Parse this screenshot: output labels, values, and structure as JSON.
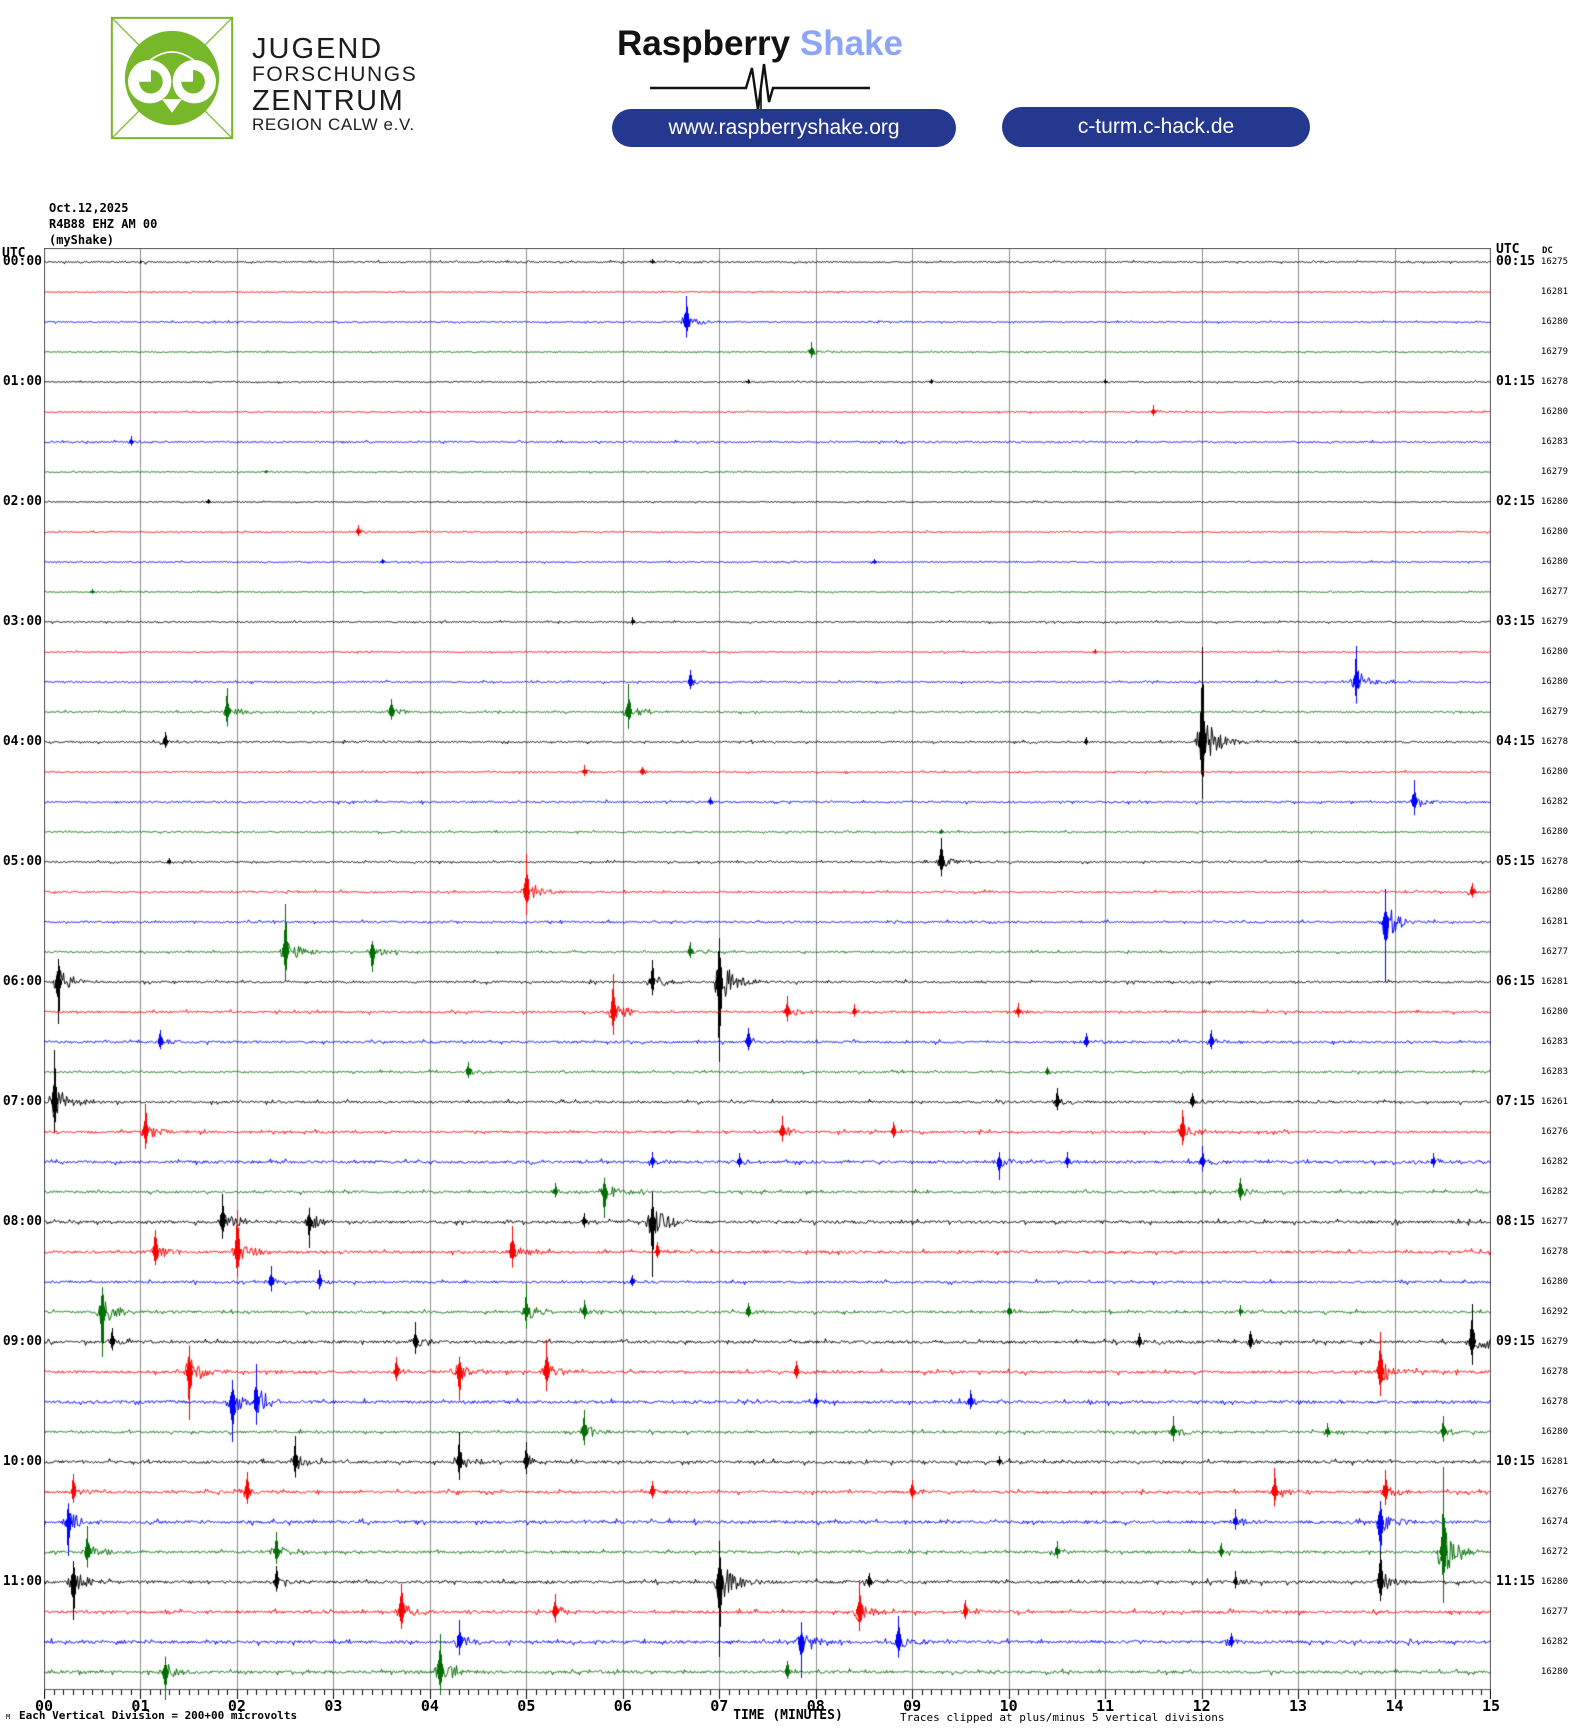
{
  "header": {
    "jfz": {
      "lines": [
        "JUGEND",
        "FORSCHUNGS",
        "ZENTRUM",
        "REGION CALW e.V."
      ],
      "logo_color": "#76b82a"
    },
    "raspberryshake": {
      "brand1": "Raspberry",
      "brand2": "Shake",
      "brand2_color": "#8ca6f5",
      "button": "www.raspberryshake.org",
      "button_bg": "#24388f"
    },
    "chack": {
      "letter1": "C",
      "letters_rest": "HACK",
      "letter1_color": "#6aaa28",
      "rest_color": "#2fa8e0",
      "button": "c-turm.c-hack.de",
      "button_bg": "#24388f"
    }
  },
  "chart_data": {
    "type": "line",
    "subtype": "helicorder-seismogram",
    "title_lines": [
      "Oct.12,2025",
      "R4B88 EHZ AM 00",
      "(myShake)"
    ],
    "left_axis_title": "UTC",
    "right_axis_title": "UTC",
    "right_value_title": "DC",
    "xlabel": "TIME (MINUTES)",
    "x_ticks": [
      "00",
      "01",
      "02",
      "03",
      "04",
      "05",
      "06",
      "07",
      "08",
      "09",
      "10",
      "11",
      "12",
      "13",
      "14",
      "15"
    ],
    "minutes_per_row": 15,
    "scale_note": "Each Vertical Division =  200+00 microvolts",
    "clip_note": "Traces clipped at plus/minus 5 vertical divisions",
    "corner_glyph": "M",
    "trace_colors": [
      "#000000",
      "#ff0000",
      "#0000ff",
      "#006e00"
    ],
    "grid_color": "#8c8c8c",
    "border_color": "#555555",
    "rows": [
      {
        "left": "00:00",
        "right": "00:15",
        "dc": 16275,
        "color": 0,
        "noise": 0.7,
        "events": [
          [
            1.0,
            2
          ],
          [
            6.3,
            3
          ]
        ]
      },
      {
        "left": "",
        "right": "",
        "dc": 16281,
        "color": 1,
        "noise": 0.5,
        "events": []
      },
      {
        "left": "",
        "right": "",
        "dc": 16280,
        "color": 2,
        "noise": 0.6,
        "events": [
          [
            6.65,
            26
          ]
        ]
      },
      {
        "left": "",
        "right": "",
        "dc": 16279,
        "color": 3,
        "noise": 0.5,
        "events": [
          [
            7.95,
            10
          ]
        ]
      },
      {
        "left": "01:00",
        "right": "01:15",
        "dc": 16278,
        "color": 0,
        "noise": 0.6,
        "events": [
          [
            7.3,
            3
          ],
          [
            9.2,
            3
          ],
          [
            11.0,
            3
          ]
        ]
      },
      {
        "left": "",
        "right": "",
        "dc": 16280,
        "color": 1,
        "noise": 0.6,
        "events": [
          [
            11.5,
            7
          ]
        ]
      },
      {
        "left": "",
        "right": "",
        "dc": 16283,
        "color": 2,
        "noise": 0.8,
        "events": [
          [
            0.9,
            6
          ]
        ]
      },
      {
        "left": "",
        "right": "",
        "dc": 16279,
        "color": 3,
        "noise": 0.5,
        "events": [
          [
            2.3,
            2
          ]
        ]
      },
      {
        "left": "02:00",
        "right": "02:15",
        "dc": 16280,
        "color": 0,
        "noise": 0.5,
        "events": [
          [
            1.7,
            3
          ]
        ]
      },
      {
        "left": "",
        "right": "",
        "dc": 16280,
        "color": 1,
        "noise": 0.6,
        "events": [
          [
            3.25,
            7
          ]
        ]
      },
      {
        "left": "",
        "right": "",
        "dc": 16280,
        "color": 2,
        "noise": 0.6,
        "events": [
          [
            3.5,
            3
          ],
          [
            8.6,
            3
          ]
        ]
      },
      {
        "left": "",
        "right": "",
        "dc": 16277,
        "color": 3,
        "noise": 0.5,
        "events": [
          [
            0.5,
            3
          ]
        ]
      },
      {
        "left": "03:00",
        "right": "03:15",
        "dc": 16279,
        "color": 0,
        "noise": 0.7,
        "events": [
          [
            6.1,
            5
          ]
        ]
      },
      {
        "left": "",
        "right": "",
        "dc": 16280,
        "color": 1,
        "noise": 0.6,
        "events": [
          [
            10.9,
            3
          ]
        ]
      },
      {
        "left": "",
        "right": "",
        "dc": 16280,
        "color": 2,
        "noise": 0.8,
        "events": [
          [
            6.7,
            12
          ],
          [
            13.6,
            36
          ]
        ]
      },
      {
        "left": "",
        "right": "",
        "dc": 16279,
        "color": 3,
        "noise": 0.8,
        "events": [
          [
            1.9,
            24
          ],
          [
            3.6,
            13
          ],
          [
            6.05,
            28
          ]
        ]
      },
      {
        "left": "04:00",
        "right": "04:15",
        "dc": 16278,
        "color": 0,
        "noise": 0.8,
        "events": [
          [
            1.25,
            10
          ],
          [
            10.8,
            5
          ],
          [
            12.0,
            95
          ]
        ]
      },
      {
        "left": "",
        "right": "",
        "dc": 16280,
        "color": 1,
        "noise": 0.7,
        "events": [
          [
            5.6,
            7
          ],
          [
            6.2,
            5
          ]
        ]
      },
      {
        "left": "",
        "right": "",
        "dc": 16282,
        "color": 2,
        "noise": 0.9,
        "events": [
          [
            6.9,
            5
          ],
          [
            14.2,
            22
          ]
        ]
      },
      {
        "left": "",
        "right": "",
        "dc": 16280,
        "color": 3,
        "noise": 0.7,
        "events": [
          [
            9.3,
            3
          ]
        ]
      },
      {
        "left": "05:00",
        "right": "05:15",
        "dc": 16278,
        "color": 0,
        "noise": 0.8,
        "events": [
          [
            1.3,
            4
          ],
          [
            9.3,
            24
          ]
        ]
      },
      {
        "left": "",
        "right": "",
        "dc": 16280,
        "color": 1,
        "noise": 0.9,
        "events": [
          [
            5.0,
            38
          ],
          [
            14.8,
            9
          ]
        ]
      },
      {
        "left": "",
        "right": "",
        "dc": 16281,
        "color": 2,
        "noise": 0.9,
        "events": [
          [
            13.9,
            -60
          ]
        ]
      },
      {
        "left": "",
        "right": "",
        "dc": 16277,
        "color": 3,
        "noise": 0.8,
        "events": [
          [
            2.5,
            48
          ],
          [
            3.4,
            -20
          ],
          [
            6.7,
            10
          ]
        ]
      },
      {
        "left": "06:00",
        "right": "06:15",
        "dc": 16281,
        "color": 0,
        "noise": 1.0,
        "events": [
          [
            0.15,
            -42
          ],
          [
            6.3,
            22
          ],
          [
            7.0,
            -80
          ]
        ]
      },
      {
        "left": "",
        "right": "",
        "dc": 16280,
        "color": 1,
        "noise": 1.0,
        "events": [
          [
            5.9,
            38
          ],
          [
            7.7,
            16
          ],
          [
            8.4,
            8
          ],
          [
            10.1,
            9
          ]
        ]
      },
      {
        "left": "",
        "right": "",
        "dc": 16283,
        "color": 2,
        "noise": 1.1,
        "events": [
          [
            1.2,
            12
          ],
          [
            7.3,
            14
          ],
          [
            10.8,
            9
          ],
          [
            12.1,
            12
          ]
        ]
      },
      {
        "left": "",
        "right": "",
        "dc": 16283,
        "color": 3,
        "noise": 0.9,
        "events": [
          [
            4.4,
            10
          ],
          [
            10.4,
            5
          ]
        ]
      },
      {
        "left": "07:00",
        "right": "07:15",
        "dc": 16261,
        "color": 0,
        "noise": 1.1,
        "events": [
          [
            0.1,
            52
          ],
          [
            10.5,
            14
          ],
          [
            11.9,
            9
          ]
        ]
      },
      {
        "left": "",
        "right": "",
        "dc": 16276,
        "color": 1,
        "noise": 1.1,
        "events": [
          [
            1.05,
            28
          ],
          [
            7.65,
            16
          ],
          [
            8.8,
            10
          ],
          [
            11.8,
            22
          ]
        ]
      },
      {
        "left": "",
        "right": "",
        "dc": 16282,
        "color": 2,
        "noise": 1.3,
        "events": [
          [
            6.3,
            10
          ],
          [
            7.2,
            9
          ],
          [
            9.9,
            -18
          ],
          [
            10.6,
            10
          ],
          [
            12.0,
            16
          ],
          [
            14.4,
            9
          ]
        ]
      },
      {
        "left": "",
        "right": "",
        "dc": 16282,
        "color": 3,
        "noise": 1.1,
        "events": [
          [
            5.3,
            9
          ],
          [
            5.8,
            -26
          ],
          [
            12.4,
            14
          ]
        ]
      },
      {
        "left": "08:00",
        "right": "08:15",
        "dc": 16277,
        "color": 0,
        "noise": 1.3,
        "events": [
          [
            1.85,
            28
          ],
          [
            2.75,
            -26
          ],
          [
            5.6,
            9
          ],
          [
            6.3,
            -55
          ]
        ]
      },
      {
        "left": "",
        "right": "",
        "dc": 16278,
        "color": 1,
        "noise": 1.3,
        "events": [
          [
            1.15,
            22
          ],
          [
            2.0,
            42
          ],
          [
            4.85,
            26
          ],
          [
            6.35,
            10
          ]
        ]
      },
      {
        "left": "",
        "right": "",
        "dc": 16280,
        "color": 2,
        "noise": 1.1,
        "events": [
          [
            2.35,
            16
          ],
          [
            2.85,
            12
          ],
          [
            6.1,
            7
          ]
        ]
      },
      {
        "left": "",
        "right": "",
        "dc": 16292,
        "color": 3,
        "noise": 1.1,
        "events": [
          [
            0.6,
            -45
          ],
          [
            5.0,
            28
          ],
          [
            5.6,
            12
          ],
          [
            7.3,
            9
          ],
          [
            10.0,
            9
          ],
          [
            12.4,
            7
          ]
        ]
      },
      {
        "left": "09:00",
        "right": "09:15",
        "dc": 16279,
        "color": 0,
        "noise": 1.3,
        "events": [
          [
            0.7,
            14
          ],
          [
            3.85,
            20
          ],
          [
            11.35,
            9
          ],
          [
            12.5,
            11
          ],
          [
            14.8,
            38
          ]
        ]
      },
      {
        "left": "",
        "right": "",
        "dc": 16278,
        "color": 1,
        "noise": 1.3,
        "events": [
          [
            1.5,
            -48
          ],
          [
            3.65,
            15
          ],
          [
            4.3,
            -28
          ],
          [
            5.2,
            32
          ],
          [
            7.8,
            11
          ],
          [
            13.85,
            40
          ]
        ]
      },
      {
        "left": "",
        "right": "",
        "dc": 16278,
        "color": 2,
        "noise": 1.4,
        "events": [
          [
            1.95,
            -40
          ],
          [
            2.2,
            38
          ],
          [
            8.0,
            9
          ],
          [
            9.6,
            12
          ]
        ]
      },
      {
        "left": "",
        "right": "",
        "dc": 16280,
        "color": 3,
        "noise": 1.1,
        "events": [
          [
            5.6,
            22
          ],
          [
            11.7,
            16
          ],
          [
            13.3,
            9
          ],
          [
            14.5,
            16
          ]
        ]
      },
      {
        "left": "10:00",
        "right": "10:15",
        "dc": 16281,
        "color": 0,
        "noise": 1.3,
        "events": [
          [
            2.6,
            26
          ],
          [
            4.3,
            30
          ],
          [
            5.0,
            20
          ],
          [
            9.9,
            6
          ]
        ]
      },
      {
        "left": "",
        "right": "",
        "dc": 16276,
        "color": 1,
        "noise": 1.2,
        "events": [
          [
            0.3,
            18
          ],
          [
            2.1,
            20
          ],
          [
            6.3,
            11
          ],
          [
            9.0,
            12
          ],
          [
            12.75,
            24
          ],
          [
            13.9,
            22
          ]
        ]
      },
      {
        "left": "",
        "right": "",
        "dc": 16274,
        "color": 2,
        "noise": 1.4,
        "events": [
          [
            0.25,
            -34
          ],
          [
            12.35,
            13
          ],
          [
            13.85,
            -38
          ]
        ]
      },
      {
        "left": "",
        "right": "",
        "dc": 16272,
        "color": 3,
        "noise": 1.2,
        "events": [
          [
            0.45,
            26
          ],
          [
            2.4,
            20
          ],
          [
            10.5,
            11
          ],
          [
            12.2,
            9
          ],
          [
            14.5,
            85
          ]
        ]
      },
      {
        "left": "11:00",
        "right": "11:15",
        "dc": 16280,
        "color": 0,
        "noise": 1.3,
        "events": [
          [
            0.3,
            -38
          ],
          [
            2.4,
            16
          ],
          [
            7.0,
            -75
          ],
          [
            8.55,
            9
          ],
          [
            12.35,
            11
          ],
          [
            13.85,
            32
          ]
        ]
      },
      {
        "left": "",
        "right": "",
        "dc": 16277,
        "color": 1,
        "noise": 1.3,
        "events": [
          [
            3.7,
            28
          ],
          [
            5.3,
            18
          ],
          [
            8.45,
            32
          ],
          [
            9.55,
            12
          ]
        ]
      },
      {
        "left": "",
        "right": "",
        "dc": 16282,
        "color": 2,
        "noise": 1.4,
        "events": [
          [
            4.3,
            22
          ],
          [
            7.85,
            -36
          ],
          [
            8.85,
            26
          ],
          [
            12.3,
            9
          ]
        ]
      },
      {
        "left": "",
        "right": "",
        "dc": 16280,
        "color": 3,
        "noise": 1.3,
        "events": [
          [
            1.25,
            -28
          ],
          [
            4.1,
            38
          ],
          [
            7.7,
            11
          ]
        ]
      }
    ]
  }
}
